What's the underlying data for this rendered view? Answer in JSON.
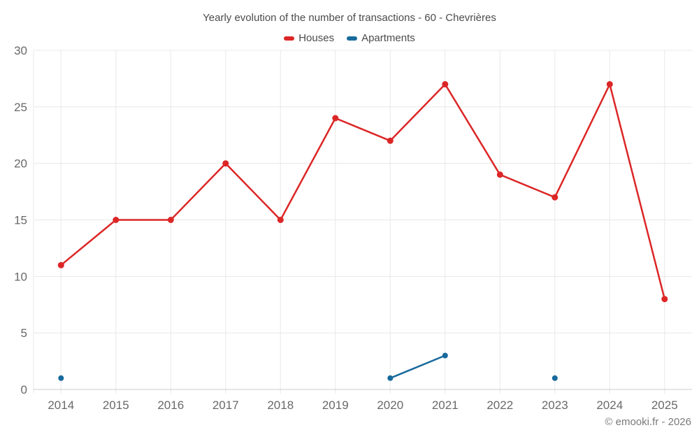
{
  "chart_data": {
    "type": "line",
    "title": "Yearly evolution of the number of transactions - 60 - Chevrières",
    "xlabel": "",
    "ylabel": "",
    "categories": [
      "2014",
      "2015",
      "2016",
      "2017",
      "2018",
      "2019",
      "2020",
      "2021",
      "2022",
      "2023",
      "2024",
      "2025"
    ],
    "series": [
      {
        "name": "Houses",
        "color": "#dc2626",
        "values": [
          11,
          15,
          15,
          20,
          15,
          24,
          22,
          27,
          19,
          17,
          27,
          8
        ]
      },
      {
        "name": "Apartments",
        "color": "#176a9c",
        "values": [
          1,
          null,
          null,
          null,
          null,
          null,
          1,
          3,
          null,
          1,
          null,
          null
        ]
      }
    ],
    "ylim": [
      0,
      30
    ],
    "yticks": [
      0,
      5,
      10,
      15,
      20,
      25,
      30
    ],
    "grid": true,
    "legend_position": "top"
  },
  "footer": {
    "copyright": "© emooki.fr - 2026"
  },
  "colors": {
    "background": "#ffffff",
    "grid": "#e8e8e8",
    "axis": "#cccccc",
    "axis_text": "#696969",
    "title_text": "#4b4b4b",
    "footer_text": "#7a7a7a"
  }
}
